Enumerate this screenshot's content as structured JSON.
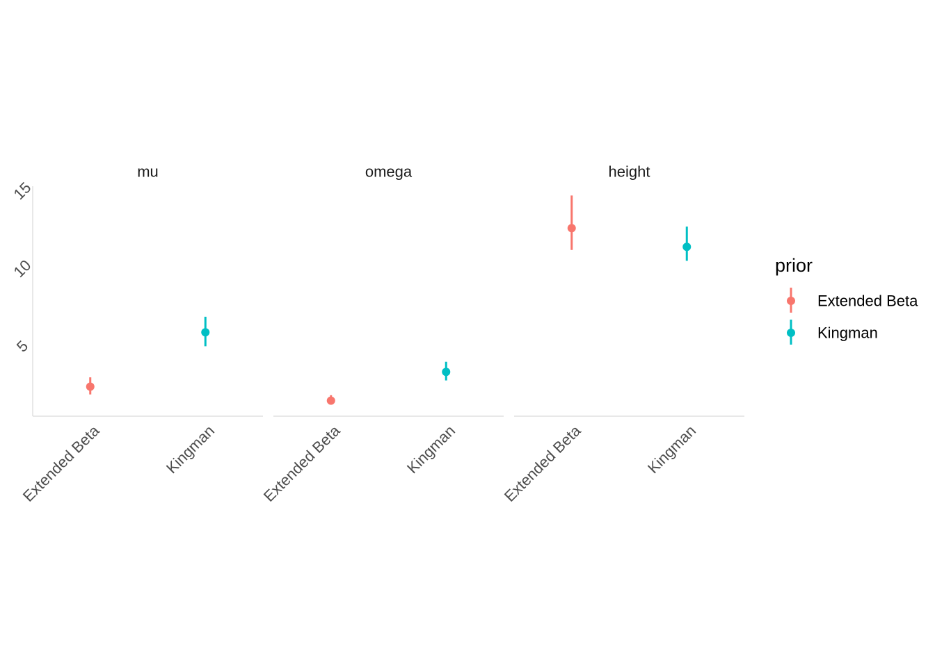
{
  "chart_data": {
    "type": "scatter",
    "geom": "pointrange",
    "facets": [
      "mu",
      "omega",
      "height"
    ],
    "categories": [
      "Extended Beta",
      "Kingman"
    ],
    "ylim": [
      0.5,
      15.3
    ],
    "yticks": [
      5,
      10,
      15
    ],
    "grid": false,
    "legend": {
      "title": "prior",
      "placement": "right",
      "entries": [
        "Extended Beta",
        "Kingman"
      ]
    },
    "colors": {
      "Extended Beta": "#F8766D",
      "Kingman": "#00BFC4"
    },
    "series": [
      {
        "name": "Extended Beta",
        "points": [
          {
            "facet": "mu",
            "x": "Extended Beta",
            "y": 2.4,
            "ymin": 1.9,
            "ymax": 3.0
          },
          {
            "facet": "omega",
            "x": "Extended Beta",
            "y": 1.5,
            "ymin": 1.25,
            "ymax": 1.85
          },
          {
            "facet": "height",
            "x": "Extended Beta",
            "y": 12.6,
            "ymin": 11.2,
            "ymax": 14.7
          }
        ]
      },
      {
        "name": "Kingman",
        "points": [
          {
            "facet": "mu",
            "x": "Kingman",
            "y": 5.9,
            "ymin": 5.0,
            "ymax": 6.9
          },
          {
            "facet": "omega",
            "x": "Kingman",
            "y": 3.35,
            "ymin": 2.8,
            "ymax": 4.0
          },
          {
            "facet": "height",
            "x": "Kingman",
            "y": 11.4,
            "ymin": 10.5,
            "ymax": 12.7
          }
        ]
      }
    ]
  }
}
